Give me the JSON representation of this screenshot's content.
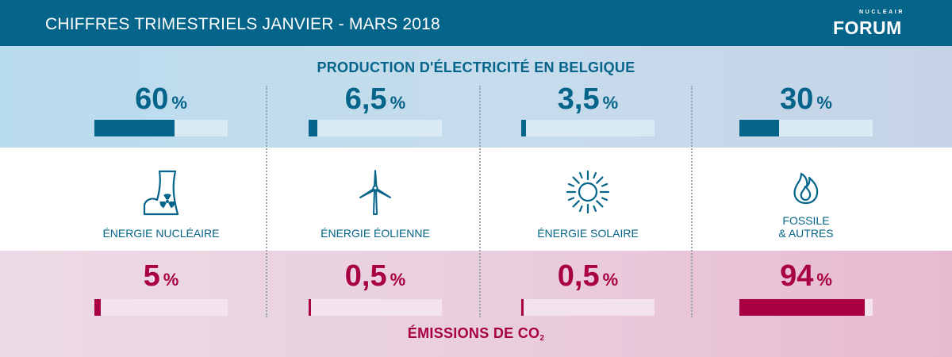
{
  "header": {
    "title": "CHIFFRES TRIMESTRIELS JANVIER - MARS 2018"
  },
  "logo": {
    "small": "NUCLEAIR",
    "big": "FORUM"
  },
  "production": {
    "title": "PRODUCTION D'ÉLECTRICITÉ EN BELGIQUE",
    "unit": "%"
  },
  "emissions": {
    "title": "ÉMISSIONS DE CO",
    "title_sub": "2",
    "unit": "%"
  },
  "sources": [
    {
      "label_line1": "ÉNERGIE NUCLÉAIRE",
      "label_line2": "",
      "icon": "nuclear-plant-icon",
      "production": "60",
      "production_pct": 60,
      "emissions": "5",
      "emissions_pct": 5
    },
    {
      "label_line1": "ÉNERGIE ÉOLIENNE",
      "label_line2": "",
      "icon": "wind-turbine-icon",
      "production": "6,5",
      "production_pct": 6.5,
      "emissions": "0,5",
      "emissions_pct": 0.5
    },
    {
      "label_line1": "ÉNERGIE SOLAIRE",
      "label_line2": "",
      "icon": "sun-icon",
      "production": "3,5",
      "production_pct": 3.5,
      "emissions": "0,5",
      "emissions_pct": 0.5
    },
    {
      "label_line1": "FOSSILE",
      "label_line2": "& AUTRES",
      "icon": "flame-icon",
      "production": "30",
      "production_pct": 30,
      "emissions": "94",
      "emissions_pct": 94
    }
  ],
  "colors": {
    "blue": "#056489",
    "crimson": "#a80042"
  }
}
